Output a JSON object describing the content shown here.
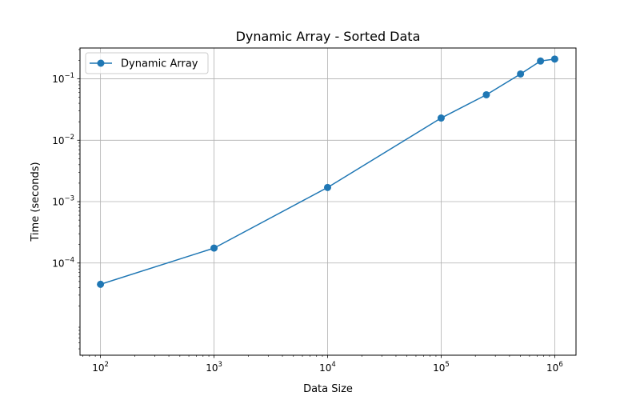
{
  "chart_data": {
    "type": "line",
    "title": "Dynamic Array - Sorted Data",
    "xlabel": "Data Size",
    "ylabel": "Time (seconds)",
    "xscale": "log",
    "yscale": "log",
    "xlim": [
      66,
      1540000
    ],
    "ylim": [
      3.15e-06,
      0.318
    ],
    "x_ticks": [
      {
        "value": 100,
        "base": "10",
        "exp": "2"
      },
      {
        "value": 1000,
        "base": "10",
        "exp": "3"
      },
      {
        "value": 10000,
        "base": "10",
        "exp": "4"
      },
      {
        "value": 100000,
        "base": "10",
        "exp": "5"
      },
      {
        "value": 1000000,
        "base": "10",
        "exp": "6"
      }
    ],
    "y_ticks": [
      {
        "value": 0.0001,
        "base": "10",
        "exp": "−4"
      },
      {
        "value": 0.001,
        "base": "10",
        "exp": "−3"
      },
      {
        "value": 0.01,
        "base": "10",
        "exp": "−2"
      },
      {
        "value": 0.1,
        "base": "10",
        "exp": "−1"
      }
    ],
    "grid": true,
    "legend_position": "top-left",
    "series": [
      {
        "name": "Dynamic Array",
        "color": "#1f77b4",
        "marker": "circle",
        "x": [
          100,
          1000,
          10000,
          100000,
          250000,
          500000,
          750000,
          1000000
        ],
        "y": [
          4.5e-05,
          0.000175,
          0.0017,
          0.023,
          0.055,
          0.12,
          0.195,
          0.21
        ]
      }
    ]
  }
}
